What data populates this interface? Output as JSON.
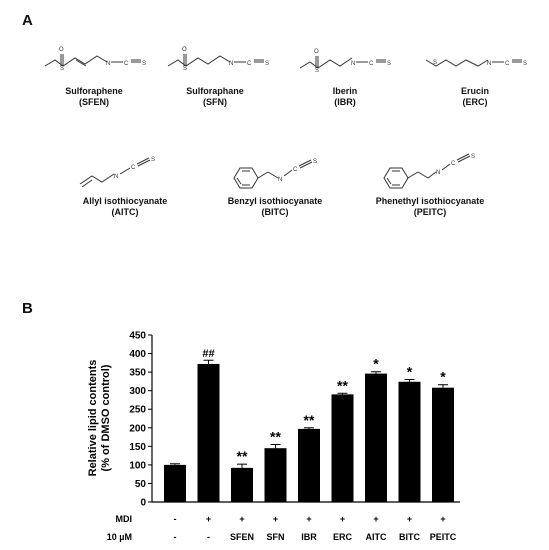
{
  "panel_a_label": "A",
  "panel_b_label": "B",
  "compounds": [
    {
      "name": "Sulforaphene",
      "abbr": "(SFEN)"
    },
    {
      "name": "Sulforaphane",
      "abbr": "(SFN)"
    },
    {
      "name": "Iberin",
      "abbr": "(IBR)"
    },
    {
      "name": "Erucin",
      "abbr": "(ERC)"
    },
    {
      "name": "Allyl isothiocyanate",
      "abbr": "(AITC)"
    },
    {
      "name": "Benzyl isothiocyanate",
      "abbr": "(BITC)"
    },
    {
      "name": "Phenethyl isothiocyanate",
      "abbr": "(PEITC)"
    }
  ],
  "atoms": {
    "s": "S",
    "o": "O",
    "n": "N",
    "c": "C"
  },
  "chart_data": {
    "type": "bar",
    "ylabel_line1": "Relative lipid contents",
    "ylabel_line2": "(% of DMSO control)",
    "ylim": [
      0,
      450
    ],
    "yticks": [
      0,
      50,
      100,
      150,
      200,
      250,
      300,
      350,
      400,
      450
    ],
    "values": [
      100,
      372,
      92,
      145,
      197,
      290,
      346,
      324,
      308
    ],
    "errors": [
      3,
      10,
      10,
      10,
      3,
      3,
      5,
      6,
      8
    ],
    "significance": [
      "",
      "##",
      "**",
      "**",
      "**",
      "**",
      "*",
      "*",
      "*"
    ],
    "row_labels": [
      "MDI",
      "10 µM"
    ],
    "mdi": [
      "-",
      "+",
      "+",
      "+",
      "+",
      "+",
      "+",
      "+",
      "+"
    ],
    "treatment": [
      "-",
      "-",
      "SFEN",
      "SFN",
      "IBR",
      "ERC",
      "AITC",
      "BITC",
      "PEITC"
    ],
    "bar_color": "#000000"
  }
}
